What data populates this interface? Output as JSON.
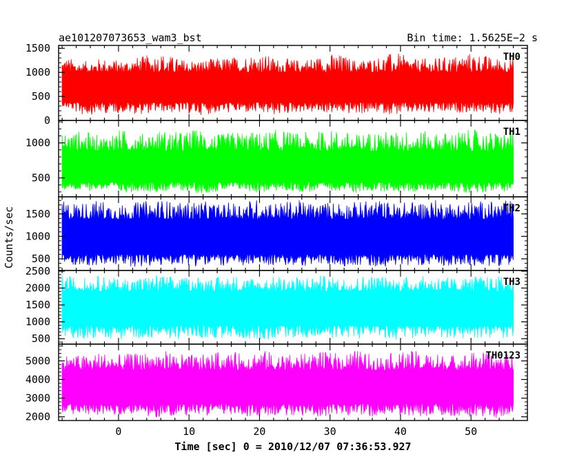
{
  "header": {
    "title": "ae101207073653_wam3_bst",
    "bin_time": "Bin time: 1.5625E−2 s"
  },
  "axes": {
    "ylabel": "Counts/sec",
    "xlabel": "Time [sec] 0 = 2010/12/07 07:36:53.927"
  },
  "chart_data": {
    "type": "line",
    "title": "ae101207073653_wam3_bst",
    "subtitle": "Bin time: 1.5625E−2 s",
    "xlabel": "Time [sec] 0 = 2010/12/07 07:36:53.927",
    "ylabel": "Counts/sec",
    "xlim": [
      -8.5,
      58
    ],
    "x_ticks": [
      0,
      10,
      20,
      30,
      40,
      50
    ],
    "x_data_range": [
      -8,
      56
    ],
    "bin_width": 0.015625,
    "grid": false,
    "panels": [
      {
        "label": "TH0",
        "color": "#ff0000",
        "ylim": [
          0,
          1560
        ],
        "y_ticks": [
          0,
          500,
          1000,
          1500
        ],
        "envelope_high": [
          1350,
          1220,
          1300,
          1250,
          1330,
          1420,
          1280,
          1260,
          1300,
          1340,
          1410,
          1290,
          1270,
          1330,
          1400,
          1260,
          1320,
          1420,
          1280,
          1300,
          1350,
          1430,
          1300,
          1320
        ],
        "envelope_low": [
          300,
          100,
          140,
          160,
          120,
          180,
          140,
          110,
          150,
          160,
          130,
          100,
          170,
          150,
          140,
          120,
          160,
          110,
          140,
          130,
          150,
          170,
          120,
          150
        ],
        "band_high": 1000,
        "band_low": 380
      },
      {
        "label": "TH1",
        "color": "#00ff00",
        "ylim": [
          230,
          1320
        ],
        "y_ticks": [
          500,
          1000
        ],
        "envelope_high": [
          1150,
          1180,
          1100,
          1200,
          1130,
          1190,
          1160,
          1210,
          1120,
          1180,
          1150,
          1200,
          1140,
          1170,
          1190,
          1130,
          1180,
          1160,
          1200,
          1140,
          1170,
          1190,
          1150,
          1180
        ],
        "envelope_low": [
          320,
          300,
          330,
          280,
          310,
          290,
          320,
          270,
          300,
          330,
          280,
          310,
          300,
          290,
          320,
          280,
          310,
          300,
          290,
          320,
          300,
          280,
          310,
          300
        ],
        "band_high": 880,
        "band_low": 440
      },
      {
        "label": "TH2",
        "color": "#0000ff",
        "ylim": [
          240,
          1880
        ],
        "y_ticks": [
          500,
          1000,
          1500
        ],
        "envelope_high": [
          1800,
          1760,
          1820,
          1700,
          1780,
          1830,
          1750,
          1800,
          1720,
          1790,
          1840,
          1760,
          1810,
          1740,
          1800,
          1770,
          1830,
          1750,
          1790,
          1820,
          1760,
          1800,
          1780,
          1810
        ],
        "envelope_low": [
          380,
          350,
          320,
          360,
          300,
          340,
          380,
          330,
          350,
          310,
          370,
          340,
          320,
          360,
          330,
          350,
          310,
          340,
          370,
          330,
          350,
          320,
          340,
          360
        ],
        "band_high": 1380,
        "band_low": 600
      },
      {
        "label": "TH3",
        "color": "#00ffff",
        "ylim": [
          340,
          2520
        ],
        "y_ticks": [
          500,
          1000,
          1500,
          2000,
          2500
        ],
        "envelope_high": [
          2400,
          2300,
          2380,
          2280,
          2350,
          2420,
          2300,
          2360,
          2330,
          2400,
          2280,
          2370,
          2340,
          2390,
          2310,
          2360,
          2400,
          2320,
          2350,
          2380,
          2300,
          2360,
          2340,
          2380
        ],
        "envelope_low": [
          500,
          480,
          520,
          460,
          500,
          540,
          470,
          510,
          480,
          520,
          460,
          500,
          530,
          470,
          510,
          490,
          520,
          460,
          500,
          530,
          480,
          510,
          490,
          500
        ],
        "band_high": 1900,
        "band_low": 900
      },
      {
        "label": "TH0123",
        "color": "#ff00ff",
        "ylim": [
          1800,
          5900
        ],
        "y_ticks": [
          2000,
          3000,
          4000,
          5000
        ],
        "envelope_high": [
          5400,
          5300,
          5500,
          5350,
          5450,
          5600,
          5400,
          5300,
          5500,
          5450,
          5650,
          5400,
          5350,
          5500,
          5450,
          5600,
          5300,
          5450,
          5550,
          5400,
          5350,
          5500,
          5450,
          5400
        ],
        "envelope_low": [
          2200,
          2100,
          2000,
          2100,
          2050,
          1950,
          2100,
          2000,
          2150,
          2050,
          2000,
          2100,
          2050,
          2000,
          2100,
          2050,
          1950,
          2100,
          2000,
          1950,
          2050,
          2000,
          1900,
          2050
        ],
        "band_high": 4500,
        "band_low": 2700
      }
    ]
  }
}
